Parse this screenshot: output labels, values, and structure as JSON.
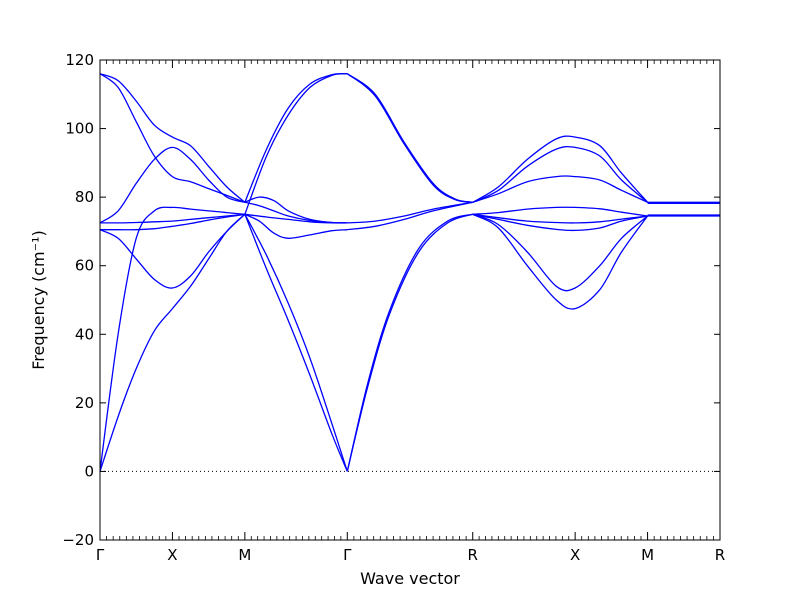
{
  "chart_data": {
    "type": "line",
    "xlabel": "Wave vector",
    "ylabel": "Frequency (cm⁻¹)",
    "ylim": [
      -20,
      120
    ],
    "yticks": [
      -20,
      0,
      20,
      40,
      60,
      80,
      100,
      120
    ],
    "reference_lines": [
      {
        "y": 0,
        "style": "dotted"
      }
    ],
    "grid": false,
    "series_color": "#0000ff",
    "high_symmetry_points": [
      {
        "label": "Γ",
        "q": 0.0
      },
      {
        "label": "X",
        "q": 0.5
      },
      {
        "label": "M",
        "q": 1.0
      },
      {
        "label": "Γ",
        "q": 1.707
      },
      {
        "label": "R",
        "q": 2.573
      },
      {
        "label": "X",
        "q": 3.28
      },
      {
        "label": "M",
        "q": 3.78
      },
      {
        "label": "R",
        "q": 4.28
      }
    ],
    "series": [
      {
        "x": [
          0,
          0.125,
          0.25,
          0.375,
          0.5,
          0.625,
          0.75,
          0.875,
          1.0
        ],
        "y": [
          0,
          16,
          30,
          41,
          47.5,
          54,
          62,
          70,
          75
        ]
      },
      {
        "x": [
          0,
          0.125,
          0.25,
          0.375,
          0.5,
          0.625,
          0.75,
          0.875,
          1.0
        ],
        "y": [
          0,
          40,
          68,
          76,
          77,
          76.5,
          76,
          75.5,
          75
        ]
      },
      {
        "x": [
          0,
          0.125,
          0.25,
          0.375,
          0.5,
          0.625,
          0.75,
          0.875,
          1.0
        ],
        "y": [
          70.5,
          68,
          62,
          56,
          53.5,
          57,
          64,
          70,
          75
        ]
      },
      {
        "x": [
          0,
          0.125,
          0.25,
          0.375,
          0.5,
          0.625,
          0.75,
          0.875,
          1.0
        ],
        "y": [
          70.5,
          70.5,
          70.5,
          70.8,
          71.5,
          72.3,
          73.3,
          74.2,
          75
        ]
      },
      {
        "x": [
          0,
          0.125,
          0.25,
          0.375,
          0.5,
          0.625,
          0.75,
          0.875,
          1.0
        ],
        "y": [
          72.5,
          72.5,
          72.6,
          72.8,
          73,
          73.5,
          74,
          74.5,
          75
        ]
      },
      {
        "x": [
          0,
          0.125,
          0.25,
          0.375,
          0.5,
          0.625,
          0.75,
          0.875,
          1.0
        ],
        "y": [
          72.5,
          76,
          84,
          91,
          94.5,
          91,
          85,
          80,
          78.5
        ]
      },
      {
        "x": [
          0,
          0.125,
          0.25,
          0.375,
          0.5,
          0.625,
          0.75,
          0.875,
          1.0
        ],
        "y": [
          116,
          112,
          102,
          92,
          86,
          84.5,
          82.5,
          80.5,
          78.5
        ]
      },
      {
        "x": [
          0,
          0.125,
          0.25,
          0.375,
          0.5,
          0.625,
          0.75,
          0.875,
          1.0
        ],
        "y": [
          116,
          114,
          108,
          101,
          97.5,
          95,
          89,
          83,
          78.5
        ]
      },
      {
        "x": [
          1.0,
          1.1,
          1.2,
          1.3,
          1.45,
          1.6,
          1.707
        ],
        "y": [
          75,
          73,
          69.5,
          68,
          69,
          70.2,
          70.5
        ]
      },
      {
        "x": [
          1.0,
          1.1,
          1.2,
          1.3,
          1.45,
          1.6,
          1.707
        ],
        "y": [
          78.5,
          80,
          79,
          76,
          73.5,
          72.6,
          72.5
        ]
      },
      {
        "x": [
          1.0,
          1.1,
          1.2,
          1.3,
          1.45,
          1.6,
          1.707
        ],
        "y": [
          78.5,
          77.5,
          76,
          74.5,
          73.2,
          72.6,
          72.5
        ]
      },
      {
        "x": [
          1.0,
          1.15,
          1.3,
          1.45,
          1.6,
          1.707
        ],
        "y": [
          75,
          74.2,
          73.5,
          72.8,
          72.5,
          72.5
        ]
      },
      {
        "x": [
          1.0,
          1.15,
          1.3,
          1.45,
          1.6,
          1.707
        ],
        "y": [
          75,
          59,
          44,
          28,
          11,
          0
        ]
      },
      {
        "x": [
          1.0,
          1.15,
          1.3,
          1.45,
          1.6,
          1.707
        ],
        "y": [
          75,
          63,
          49,
          33,
          14,
          0
        ]
      },
      {
        "x": [
          1.0,
          1.15,
          1.3,
          1.45,
          1.6,
          1.707
        ],
        "y": [
          75,
          92,
          104,
          112,
          115.5,
          116
        ]
      },
      {
        "x": [
          1.0,
          1.15,
          1.3,
          1.45,
          1.6,
          1.707
        ],
        "y": [
          78.5,
          94,
          106,
          113,
          115.7,
          116
        ]
      },
      {
        "x": [
          1.707,
          1.85,
          2.0,
          2.2,
          2.4,
          2.573
        ],
        "y": [
          0,
          25,
          46,
          64,
          72.5,
          75
        ]
      },
      {
        "x": [
          1.707,
          1.85,
          2.0,
          2.2,
          2.4,
          2.573
        ],
        "y": [
          0,
          26,
          47,
          65,
          73,
          75
        ]
      },
      {
        "x": [
          1.707,
          1.9,
          2.1,
          2.3,
          2.573
        ],
        "y": [
          70.5,
          71.5,
          73.5,
          76,
          78.5
        ]
      },
      {
        "x": [
          1.707,
          1.9,
          2.1,
          2.3,
          2.573
        ],
        "y": [
          72.5,
          73,
          74.5,
          76.5,
          78.5
        ]
      },
      {
        "x": [
          1.707,
          1.9,
          2.1,
          2.3,
          2.45,
          2.573
        ],
        "y": [
          116,
          110,
          96,
          84,
          79.5,
          78.5
        ]
      },
      {
        "x": [
          1.707,
          1.9,
          2.1,
          2.3,
          2.45,
          2.573
        ],
        "y": [
          116,
          109.5,
          95.5,
          83.5,
          79.3,
          78.5
        ]
      },
      {
        "x": [
          2.573,
          2.75,
          2.95,
          3.15,
          3.28,
          3.45,
          3.6,
          3.78
        ],
        "y": [
          75,
          72,
          64,
          54,
          53.5,
          60,
          68,
          74.5
        ]
      },
      {
        "x": [
          2.573,
          2.75,
          2.95,
          3.15,
          3.28,
          3.45,
          3.6,
          3.78
        ],
        "y": [
          75,
          71,
          60,
          50,
          47.5,
          53,
          64,
          74.5
        ]
      },
      {
        "x": [
          2.573,
          2.75,
          2.95,
          3.15,
          3.28,
          3.45,
          3.6,
          3.78
        ],
        "y": [
          75,
          73.5,
          71.8,
          70.6,
          70.3,
          71,
          73,
          74.5
        ]
      },
      {
        "x": [
          2.573,
          2.75,
          2.95,
          3.15,
          3.28,
          3.45,
          3.6,
          3.78
        ],
        "y": [
          75,
          75.5,
          76.5,
          77,
          77,
          76.6,
          75.6,
          74.5
        ]
      },
      {
        "x": [
          2.573,
          2.75,
          2.95,
          3.15,
          3.28,
          3.45,
          3.6,
          3.78
        ],
        "y": [
          75,
          74,
          73,
          72.6,
          72.5,
          72.8,
          73.6,
          74.5
        ]
      },
      {
        "x": [
          2.573,
          2.75,
          2.95,
          3.15,
          3.28,
          3.45,
          3.6,
          3.78
        ],
        "y": [
          78.5,
          81,
          84.5,
          86,
          86,
          85,
          82,
          78.5
        ]
      },
      {
        "x": [
          2.573,
          2.75,
          2.95,
          3.15,
          3.28,
          3.45,
          3.6,
          3.78
        ],
        "y": [
          78.5,
          82,
          89,
          94,
          94.5,
          92,
          85,
          78.5
        ]
      },
      {
        "x": [
          2.573,
          2.75,
          2.95,
          3.15,
          3.28,
          3.45,
          3.6,
          3.78
        ],
        "y": [
          78.5,
          83,
          91,
          97,
          97.5,
          95,
          87,
          78.5
        ]
      },
      {
        "x": [
          3.78,
          4.28
        ],
        "y": [
          78.5,
          78.5
        ]
      },
      {
        "x": [
          3.78,
          4.28
        ],
        "y": [
          78.2,
          78.2
        ]
      },
      {
        "x": [
          3.78,
          4.28
        ],
        "y": [
          74.8,
          74.8
        ]
      },
      {
        "x": [
          3.78,
          4.28
        ],
        "y": [
          74.5,
          74.5
        ]
      }
    ]
  }
}
